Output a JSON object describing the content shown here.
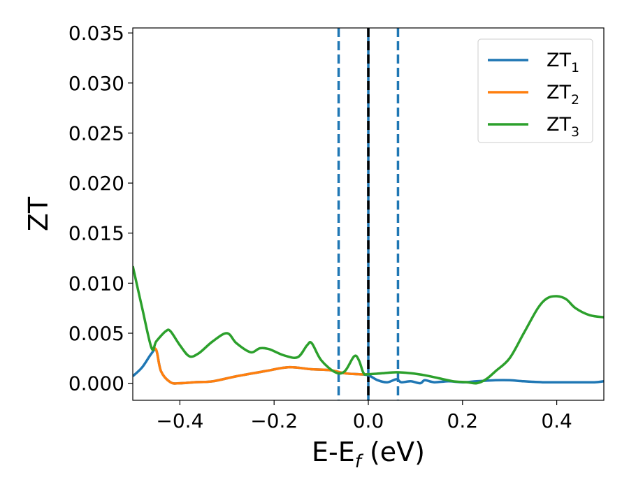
{
  "chart_data": {
    "type": "line",
    "xlabel": {
      "main": "E-E",
      "sub": "f",
      "suffix": " (eV)"
    },
    "ylabel": "ZT",
    "xlim": [
      -0.5,
      0.5
    ],
    "ylim": [
      -0.0017,
      0.0355
    ],
    "xticks": [
      -0.4,
      -0.2,
      0.0,
      0.2,
      0.4
    ],
    "xtick_labels": [
      "−0.4",
      "−0.2",
      "0.0",
      "0.2",
      "0.4"
    ],
    "yticks": [
      0.0,
      0.005,
      0.01,
      0.015,
      0.02,
      0.025,
      0.03,
      0.035
    ],
    "ytick_labels": [
      "0.000",
      "0.005",
      "0.010",
      "0.015",
      "0.020",
      "0.025",
      "0.030",
      "0.035"
    ],
    "legend_position": "top-right",
    "grid": false,
    "vlines": [
      {
        "x": -0.063,
        "style": "dashed",
        "color": "#1f77b4"
      },
      {
        "x": 0.063,
        "style": "dashed",
        "color": "#1f77b4"
      },
      {
        "x": 0.0,
        "style": "solid",
        "color": "#1f77b4"
      },
      {
        "x": 0.0,
        "style": "dashed",
        "color": "#000000"
      }
    ],
    "series": [
      {
        "name": "ZT",
        "subscript": "1",
        "color": "#1f77b4",
        "x": [
          -0.5,
          -0.48,
          -0.46,
          -0.45,
          -0.44,
          -0.42,
          -0.4,
          -0.37,
          -0.33,
          -0.28,
          -0.22,
          -0.17,
          -0.12,
          -0.08,
          -0.05,
          -0.02,
          0.0,
          0.02,
          0.04,
          0.06,
          0.07,
          0.09,
          0.11,
          0.12,
          0.14,
          0.17,
          0.2,
          0.23,
          0.27,
          0.3,
          0.33,
          0.37,
          0.4,
          0.44,
          0.48,
          0.5
        ],
        "y": [
          0.0007,
          0.0016,
          0.003,
          0.0033,
          0.0012,
          0.0001,
          0.0,
          0.0001,
          0.0002,
          0.0007,
          0.0012,
          0.0016,
          0.0014,
          0.0013,
          0.001,
          0.0009,
          0.0008,
          0.0003,
          0.0001,
          0.0004,
          0.0001,
          0.0002,
          0.0,
          0.0003,
          0.0001,
          0.0002,
          0.0001,
          0.0002,
          0.0003,
          0.0003,
          0.0002,
          0.0001,
          0.0001,
          0.0001,
          0.0001,
          0.0002
        ]
      },
      {
        "name": "ZT",
        "subscript": "2",
        "color": "#ff7f0e",
        "x": [
          -0.46,
          -0.45,
          -0.44,
          -0.42,
          -0.4,
          -0.37,
          -0.33,
          -0.28,
          -0.22,
          -0.17,
          -0.12,
          -0.08,
          -0.05,
          -0.02,
          0.0
        ],
        "y": [
          0.0035,
          0.0033,
          0.0012,
          0.0001,
          0.0,
          0.0001,
          0.0002,
          0.0007,
          0.0012,
          0.0016,
          0.0014,
          0.0013,
          0.001,
          0.0009,
          0.0009
        ]
      },
      {
        "name": "ZT",
        "subscript": "3",
        "color": "#2ca02c",
        "x": [
          -0.5,
          -0.48,
          -0.46,
          -0.45,
          -0.43,
          -0.42,
          -0.4,
          -0.38,
          -0.36,
          -0.33,
          -0.3,
          -0.28,
          -0.25,
          -0.23,
          -0.21,
          -0.18,
          -0.15,
          -0.13,
          -0.12,
          -0.1,
          -0.07,
          -0.05,
          -0.03,
          -0.02,
          -0.01,
          0.0,
          0.03,
          0.06,
          0.09,
          0.12,
          0.15,
          0.18,
          0.21,
          0.23,
          0.25,
          0.27,
          0.3,
          0.33,
          0.36,
          0.38,
          0.4,
          0.42,
          0.44,
          0.47,
          0.5
        ],
        "y": [
          0.0117,
          0.0075,
          0.0035,
          0.0042,
          0.0052,
          0.0052,
          0.0038,
          0.0027,
          0.003,
          0.0042,
          0.005,
          0.004,
          0.0031,
          0.0035,
          0.0034,
          0.0028,
          0.0026,
          0.0038,
          0.004,
          0.0023,
          0.0011,
          0.0012,
          0.0027,
          0.0023,
          0.001,
          0.0009,
          0.001,
          0.0011,
          0.001,
          0.0008,
          0.0005,
          0.0002,
          0.0001,
          0.0,
          0.0004,
          0.0012,
          0.0025,
          0.005,
          0.0075,
          0.0085,
          0.0087,
          0.0084,
          0.0075,
          0.0068,
          0.0066
        ]
      }
    ]
  }
}
